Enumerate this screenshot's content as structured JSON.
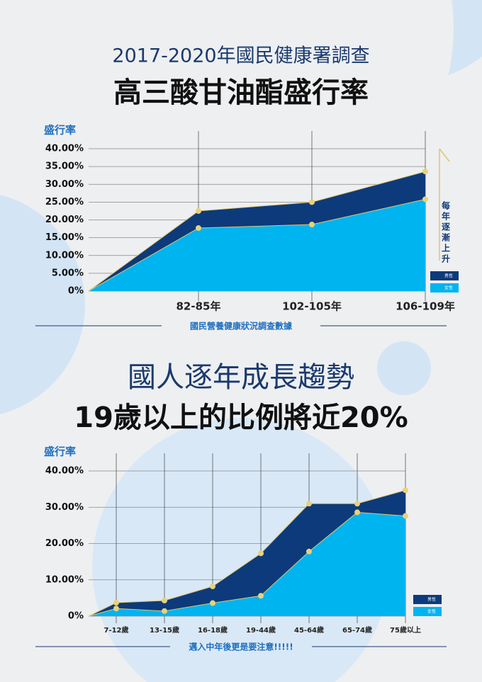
{
  "chart_data": [
    {
      "type": "area",
      "title": "2017-2020年國民健康署調查",
      "subtitle": "高三酸甘油酯盛行率",
      "y_label": "盛行率",
      "categories": [
        null,
        "82-85年",
        "102-105年",
        "106-109年"
      ],
      "series": [
        {
          "name": "男性",
          "color": "#0d3a7a",
          "values": [
            0,
            22.5,
            25,
            33.6
          ]
        },
        {
          "name": "女性",
          "color": "#00b4f0",
          "values": [
            0,
            17.7,
            18.7,
            25.8
          ]
        }
      ],
      "ylim": [
        0,
        40
      ],
      "yticks": [
        {
          "value": 0,
          "label": "0%"
        },
        {
          "value": 5,
          "label": "5.00%"
        },
        {
          "value": 10,
          "label": "10.00%"
        },
        {
          "value": 15,
          "label": "15.00%"
        },
        {
          "value": 20,
          "label": "20.00%"
        },
        {
          "value": 25,
          "label": "25.00%"
        },
        {
          "value": 30,
          "label": "30.00%"
        },
        {
          "value": 35,
          "label": "35.00%"
        },
        {
          "value": 40,
          "label": "40.00%"
        }
      ],
      "grid": true,
      "annotation": "每年逐漸上升",
      "source": "國民營養健康狀況調查數據"
    },
    {
      "type": "area",
      "title": "國人逐年成長趨勢",
      "subtitle": "19歲以上的比例將近20%",
      "y_label": "盛行率",
      "categories": [
        null,
        "7-12歲",
        "13-15歲",
        "16-18歲",
        "19-44歲",
        "45-64歲",
        "65-74歲",
        "75歲以上"
      ],
      "series": [
        {
          "name": "男性",
          "color": "#0d3a7a",
          "values": [
            0,
            3.7,
            4.3,
            8.2,
            17.3,
            31,
            31,
            34.7
          ]
        },
        {
          "name": "女性",
          "color": "#00b4f0",
          "values": [
            0,
            2.1,
            1.4,
            3.6,
            5.6,
            17.8,
            28.6,
            27.6
          ]
        }
      ],
      "ylim": [
        0,
        40
      ],
      "yticks": [
        {
          "value": 0,
          "label": "0%"
        },
        {
          "value": 10,
          "label": "10.00%"
        },
        {
          "value": 20,
          "label": "20.00%"
        },
        {
          "value": 30,
          "label": "30.00%"
        },
        {
          "value": 40,
          "label": "40.00%"
        }
      ],
      "grid": true,
      "source": "邁入中年後更是要注意!!!!!"
    }
  ]
}
